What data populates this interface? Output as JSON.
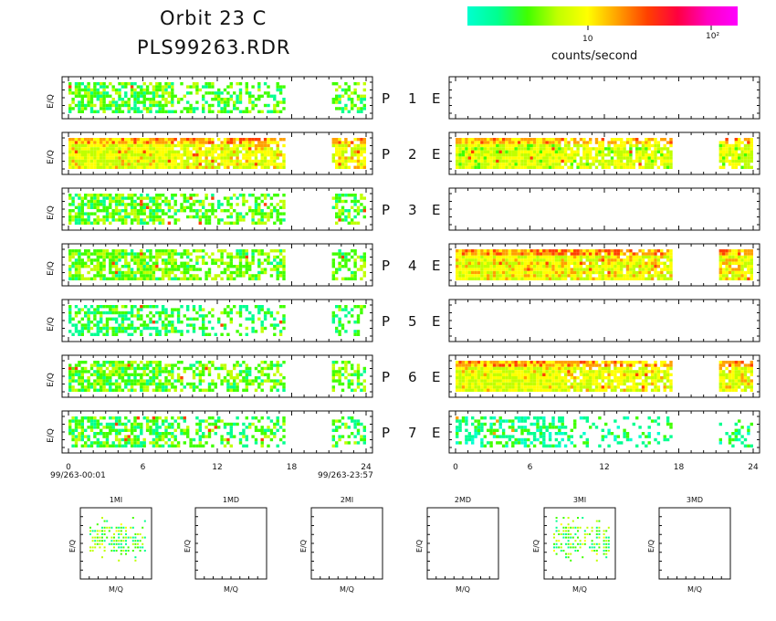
{
  "header": {
    "title_line1": "Orbit 23 C",
    "title_line2": "PLS99263.RDR"
  },
  "colorbar": {
    "label": "counts/second",
    "tick_10": "10",
    "tick_100": "10²",
    "colors": [
      "#00ffd0",
      "#00ff90",
      "#40ff00",
      "#c0ff00",
      "#ffff00",
      "#ffa000",
      "#ff4000",
      "#ff0040",
      "#ff00c0",
      "#ff00ff"
    ]
  },
  "panels": {
    "y_axis_label": "E/Q",
    "left_channels": [
      {
        "name": "P",
        "num": "1",
        "mode": "E"
      },
      {
        "name": "P",
        "num": "2",
        "mode": "E"
      },
      {
        "name": "P",
        "num": "3",
        "mode": "E"
      },
      {
        "name": "P",
        "num": "4",
        "mode": "E"
      },
      {
        "name": "P",
        "num": "5",
        "mode": "E"
      },
      {
        "name": "P",
        "num": "6",
        "mode": "E"
      },
      {
        "name": "P",
        "num": "7",
        "mode": "E"
      }
    ]
  },
  "time_axis": {
    "ticks": [
      "0",
      "6",
      "12",
      "18",
      "24"
    ],
    "start_label": "99/263-00:01",
    "end_label": "99/263-23:57"
  },
  "mass_panels": {
    "x_axis_label": "M/Q",
    "y_axis_label": "E/Q",
    "titles": [
      "1MI",
      "1MD",
      "2MI",
      "2MD",
      "3MI",
      "3MD"
    ]
  },
  "chart_data": {
    "type": "heatmap",
    "x_range": [
      0,
      24
    ],
    "x_unit": "hours",
    "data_gap_hours": [
      17.4,
      21.2
    ],
    "left_column_intensity": [
      0.35,
      0.75,
      0.38,
      0.45,
      0.25,
      0.4,
      0.3
    ],
    "right_column_intensity": [
      0.0,
      0.7,
      0.0,
      0.8,
      0.0,
      0.75,
      0.15
    ],
    "mass_panel_intensity": [
      0.6,
      0.0,
      0.0,
      0.0,
      0.6,
      0.0
    ]
  }
}
